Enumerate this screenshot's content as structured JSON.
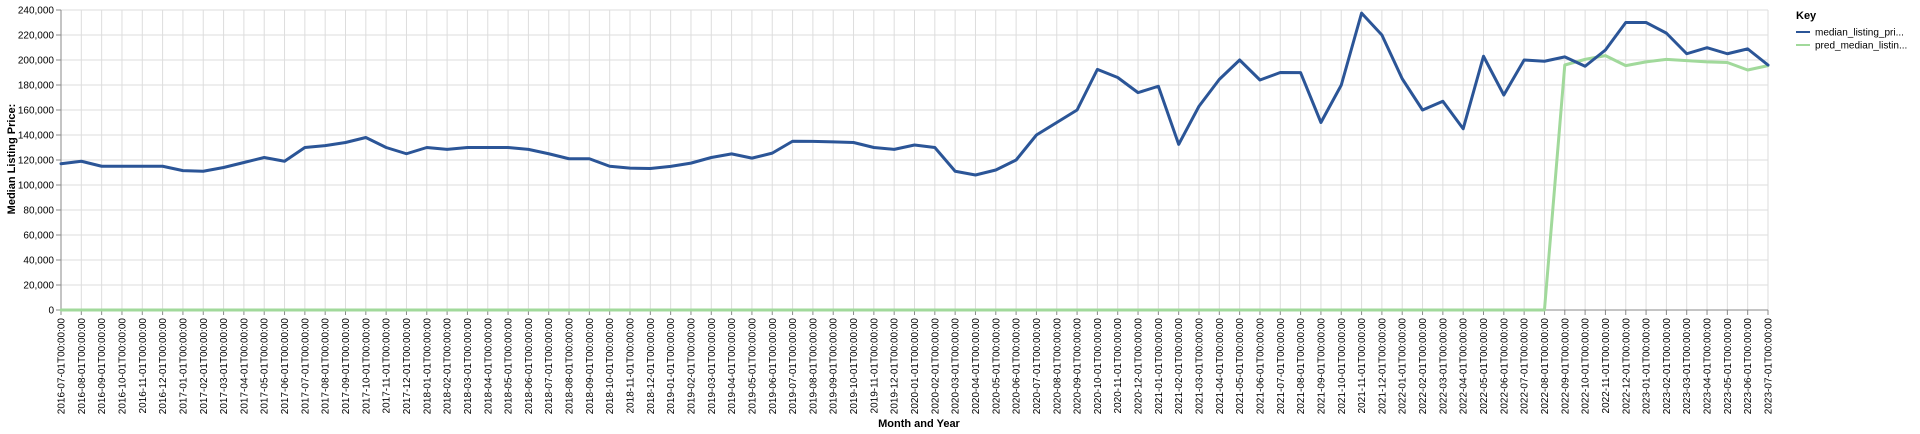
{
  "chart_data": {
    "type": "line",
    "xlabel": "Month and Year",
    "ylabel": "Median Listing Price:",
    "ylim": [
      0,
      240000
    ],
    "yticks": [
      "0",
      "20,000",
      "40,000",
      "60,000",
      "80,000",
      "100,000",
      "120,000",
      "140,000",
      "160,000",
      "180,000",
      "200,000",
      "220,000",
      "240,000"
    ],
    "ytick_values": [
      0,
      20000,
      40000,
      60000,
      80000,
      100000,
      120000,
      140000,
      160000,
      180000,
      200000,
      220000,
      240000
    ],
    "grid": true,
    "legend": {
      "title": "Key",
      "placement": "right"
    },
    "x": [
      "2016-07-01T00:00:00",
      "2016-08-01T00:00:00",
      "2016-09-01T00:00:00",
      "2016-10-01T00:00:00",
      "2016-11-01T00:00:00",
      "2016-12-01T00:00:00",
      "2017-01-01T00:00:00",
      "2017-02-01T00:00:00",
      "2017-03-01T00:00:00",
      "2017-04-01T00:00:00",
      "2017-05-01T00:00:00",
      "2017-06-01T00:00:00",
      "2017-07-01T00:00:00",
      "2017-08-01T00:00:00",
      "2017-09-01T00:00:00",
      "2017-10-01T00:00:00",
      "2017-11-01T00:00:00",
      "2017-12-01T00:00:00",
      "2018-01-01T00:00:00",
      "2018-02-01T00:00:00",
      "2018-03-01T00:00:00",
      "2018-04-01T00:00:00",
      "2018-05-01T00:00:00",
      "2018-06-01T00:00:00",
      "2018-07-01T00:00:00",
      "2018-08-01T00:00:00",
      "2018-09-01T00:00:00",
      "2018-10-01T00:00:00",
      "2018-11-01T00:00:00",
      "2018-12-01T00:00:00",
      "2019-01-01T00:00:00",
      "2019-02-01T00:00:00",
      "2019-03-01T00:00:00",
      "2019-04-01T00:00:00",
      "2019-05-01T00:00:00",
      "2019-06-01T00:00:00",
      "2019-07-01T00:00:00",
      "2019-08-01T00:00:00",
      "2019-09-01T00:00:00",
      "2019-10-01T00:00:00",
      "2019-11-01T00:00:00",
      "2019-12-01T00:00:00",
      "2020-01-01T00:00:00",
      "2020-02-01T00:00:00",
      "2020-03-01T00:00:00",
      "2020-04-01T00:00:00",
      "2020-05-01T00:00:00",
      "2020-06-01T00:00:00",
      "2020-07-01T00:00:00",
      "2020-08-01T00:00:00",
      "2020-09-01T00:00:00",
      "2020-10-01T00:00:00",
      "2020-11-01T00:00:00",
      "2020-12-01T00:00:00",
      "2021-01-01T00:00:00",
      "2021-02-01T00:00:00",
      "2021-03-01T00:00:00",
      "2021-04-01T00:00:00",
      "2021-05-01T00:00:00",
      "2021-06-01T00:00:00",
      "2021-07-01T00:00:00",
      "2021-08-01T00:00:00",
      "2021-09-01T00:00:00",
      "2021-10-01T00:00:00",
      "2021-11-01T00:00:00",
      "2021-12-01T00:00:00",
      "2022-01-01T00:00:00",
      "2022-02-01T00:00:00",
      "2022-03-01T00:00:00",
      "2022-04-01T00:00:00",
      "2022-05-01T00:00:00",
      "2022-06-01T00:00:00",
      "2022-07-01T00:00:00",
      "2022-08-01T00:00:00",
      "2022-09-01T00:00:00",
      "2022-10-01T00:00:00",
      "2022-11-01T00:00:00",
      "2022-12-01T00:00:00",
      "2023-01-01T00:00:00",
      "2023-02-01T00:00:00",
      "2023-03-01T00:00:00",
      "2023-04-01T00:00:00",
      "2023-05-01T00:00:00",
      "2023-06-01T00:00:00",
      "2023-07-01T00:00:00"
    ],
    "series": [
      {
        "name": "median_listing_pri...",
        "color": "#2b5597",
        "values": [
          117000,
          119000,
          115000,
          115000,
          115000,
          115000,
          111500,
          111000,
          114000,
          118000,
          122000,
          119000,
          130000,
          131500,
          134000,
          138000,
          130000,
          125000,
          130000,
          128500,
          130000,
          130000,
          130000,
          128500,
          125000,
          121000,
          121000,
          115000,
          113500,
          113200,
          114900,
          117500,
          122000,
          124900,
          121500,
          125500,
          135000,
          134900,
          134500,
          134000,
          130000,
          128500,
          132000,
          130000,
          111000,
          108000,
          112000,
          120000,
          140000,
          150000,
          160000,
          192500,
          186000,
          173900,
          179000,
          132500,
          163000,
          184500,
          200000,
          184000,
          190000,
          189900,
          150000,
          179900,
          237500,
          220000,
          185000,
          160000,
          167000,
          145000,
          203000,
          172000,
          200000,
          199000,
          202500,
          195000,
          208000,
          230000,
          230000,
          221500,
          205000,
          209900,
          205000,
          208900,
          196000
        ]
      },
      {
        "name": "pred_median_listin...",
        "color": "#a1d99b",
        "values": [
          0,
          0,
          0,
          0,
          0,
          0,
          0,
          0,
          0,
          0,
          0,
          0,
          0,
          0,
          0,
          0,
          0,
          0,
          0,
          0,
          0,
          0,
          0,
          0,
          0,
          0,
          0,
          0,
          0,
          0,
          0,
          0,
          0,
          0,
          0,
          0,
          0,
          0,
          0,
          0,
          0,
          0,
          0,
          0,
          0,
          0,
          0,
          0,
          0,
          0,
          0,
          0,
          0,
          0,
          0,
          0,
          0,
          0,
          0,
          0,
          0,
          0,
          0,
          0,
          0,
          0,
          0,
          0,
          0,
          0,
          0,
          0,
          0,
          0,
          196000,
          200500,
          203500,
          195500,
          198500,
          200500,
          199500,
          198500,
          198000,
          192000,
          195500
        ]
      }
    ]
  }
}
